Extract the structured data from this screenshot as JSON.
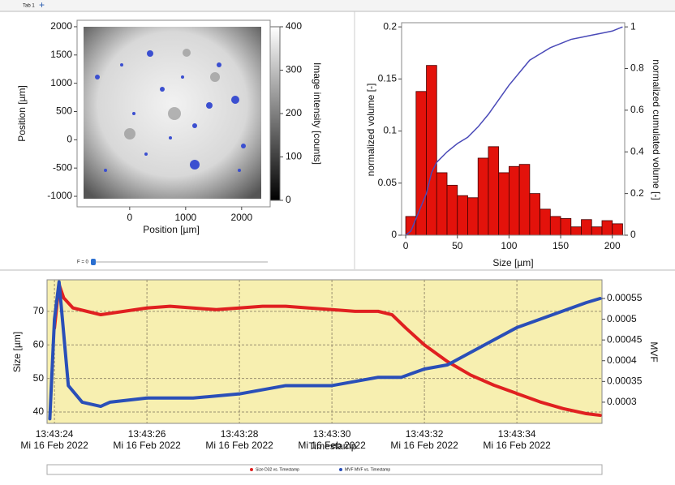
{
  "tab": "Tab 1",
  "slider": "F = 0",
  "chart_data": [
    {
      "type": "image",
      "xlabel": "Position [µm]",
      "ylabel": "Position [µm]",
      "colorbar_label": "Image intensity [counts]",
      "xlim": [
        -940,
        2510
      ],
      "xticks": [
        0,
        1000,
        2000
      ],
      "ylim": [
        -1186,
        2114
      ],
      "yticks": [
        -1000,
        -500,
        0,
        500,
        1000,
        1500,
        2000
      ],
      "clim": [
        0,
        400
      ],
      "cticks": [
        0,
        100,
        200,
        300,
        400
      ]
    },
    {
      "type": "histogram",
      "xlabel": "Size [µm]",
      "ylabel": "normalized volume [-]",
      "y2label": "normalized cumulated volume [-]",
      "bins": [
        0,
        10,
        20,
        30,
        40,
        50,
        60,
        70,
        80,
        90,
        100,
        110,
        120,
        130,
        140,
        150,
        160,
        170,
        180,
        190,
        200,
        210
      ],
      "values": [
        0.018,
        0.138,
        0.163,
        0.06,
        0.048,
        0.038,
        0.036,
        0.074,
        0.085,
        0.06,
        0.066,
        0.068,
        0.04,
        0.025,
        0.018,
        0.016,
        0.008,
        0.015,
        0.008,
        0.014,
        0.011
      ],
      "color": "#e3120b",
      "cumulative": {
        "color": "#4a4ab8",
        "axis": "y2",
        "x": [
          0,
          5,
          10,
          20,
          25,
          30,
          40,
          50,
          60,
          70,
          80,
          90,
          100,
          110,
          120,
          130,
          140,
          150,
          160,
          170,
          180,
          190,
          200,
          210
        ],
        "values": [
          0,
          0.02,
          0.08,
          0.2,
          0.3,
          0.35,
          0.4,
          0.44,
          0.47,
          0.52,
          0.58,
          0.65,
          0.72,
          0.78,
          0.84,
          0.87,
          0.9,
          0.92,
          0.94,
          0.95,
          0.96,
          0.97,
          0.98,
          1.0
        ]
      },
      "xlim": [
        -4,
        212
      ],
      "xticks": [
        0,
        50,
        100,
        150,
        200
      ],
      "ylim": [
        0,
        0.204
      ],
      "yticks": [
        0,
        0.05,
        0.1,
        0.15,
        0.2
      ],
      "y2lim": [
        0,
        1.02
      ],
      "y2ticks": [
        0,
        0.2,
        0.4,
        0.6,
        0.8,
        1
      ]
    },
    {
      "type": "line",
      "xlabel": "Timestamp",
      "ylabel": "Size [µm]",
      "y2label": "MVF",
      "xlim": [
        "13:43:23.84",
        "13:43:35.84"
      ],
      "xticks": [
        {
          "value": "13:43:24",
          "label": "13:43:24\nMi 16 Feb 2022"
        },
        {
          "value": "13:43:26",
          "label": "13:43:26\nMi 16 Feb 2022"
        },
        {
          "value": "13:43:28",
          "label": "13:43:28\nMi 16 Feb 2022"
        },
        {
          "value": "13:43:30",
          "label": "13:43:30\nMi 16 Feb 2022"
        },
        {
          "value": "13:43:32",
          "label": "13:43:32\nMi 16 Feb 2022"
        },
        {
          "value": "13:43:34",
          "label": "13:43:34\nMi 16 Feb 2022"
        }
      ],
      "ylim": [
        36.6,
        79.4
      ],
      "yticks": [
        40,
        50,
        60,
        70
      ],
      "y2lim": [
        0.000249,
        0.000595
      ],
      "y2ticks": [
        0.0003,
        0.00035,
        0.0004,
        0.00045,
        0.0005,
        0.00055
      ],
      "grid": true,
      "background": "#f7efb0",
      "series": [
        {
          "name": "Size D32 vs. Timestamp",
          "color": "#e02020",
          "x": [
            "13:43:24.0",
            "13:43:24.1",
            "13:43:24.2",
            "13:43:24.4",
            "13:43:24.7",
            "13:43:25.0",
            "13:43:25.5",
            "13:43:26.0",
            "13:43:26.5",
            "13:43:27.0",
            "13:43:27.5",
            "13:43:28.0",
            "13:43:28.5",
            "13:43:29.0",
            "13:43:29.5",
            "13:43:30.0",
            "13:43:30.5",
            "13:43:31.0",
            "13:43:31.3",
            "13:43:31.6",
            "13:43:32.0",
            "13:43:32.5",
            "13:43:33.0",
            "13:43:33.5",
            "13:43:34.0",
            "13:43:34.5",
            "13:43:35.0",
            "13:43:35.5",
            "13:43:35.8"
          ],
          "values": [
            65,
            78,
            74,
            71,
            70,
            69,
            70,
            71,
            71.5,
            71,
            70.5,
            71,
            71.5,
            71.5,
            71,
            70.5,
            70,
            70,
            69,
            65,
            60,
            55,
            51,
            48,
            45.5,
            43,
            41,
            39.5,
            39
          ]
        },
        {
          "name": "MVF MVF vs. Timestamp",
          "color": "#2a4fb8",
          "axis": "y2",
          "x": [
            "13:43:23.9",
            "13:43:24.0",
            "13:43:24.1",
            "13:43:24.3",
            "13:43:24.6",
            "13:43:25.0",
            "13:43:25.2",
            "13:43:26.0",
            "13:43:27.0",
            "13:43:28.0",
            "13:43:28.5",
            "13:43:29.0",
            "13:43:30.0",
            "13:43:30.5",
            "13:43:31.0",
            "13:43:31.5",
            "13:43:32.0",
            "13:43:32.5",
            "13:43:33.0",
            "13:43:33.5",
            "13:43:34.0",
            "13:43:34.5",
            "13:43:35.0",
            "13:43:35.5",
            "13:43:35.8"
          ],
          "values": [
            0.00026,
            0.0005,
            0.00059,
            0.00034,
            0.0003,
            0.00029,
            0.0003,
            0.00031,
            0.00031,
            0.00032,
            0.00033,
            0.00034,
            0.00034,
            0.00035,
            0.00036,
            0.00036,
            0.00038,
            0.00039,
            0.00042,
            0.00045,
            0.00048,
            0.0005,
            0.00052,
            0.00054,
            0.00055
          ]
        }
      ]
    }
  ]
}
